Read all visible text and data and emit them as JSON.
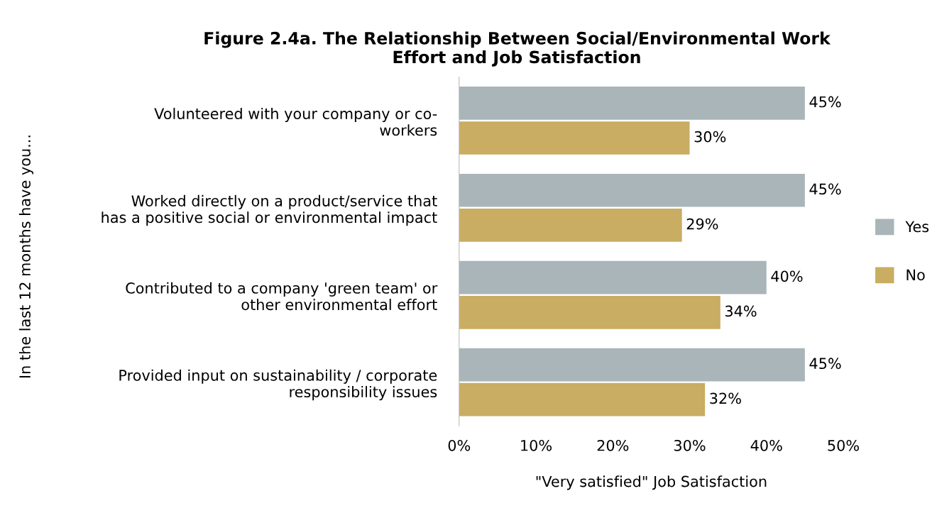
{
  "chart_data": {
    "type": "bar",
    "orientation": "horizontal",
    "title": "Figure 2.4a. The Relationship Between Social/Environmental Work\nEffort and Job Satisfaction",
    "xlabel": "\"Very satisfied\" Job Satisfaction",
    "ylabel": "In the last 12 months have you...",
    "categories": [
      "Volunteered with your company or co-\nworkers",
      "Worked directly on a product/service that\nhas a positive social or environmental impact",
      "Contributed to a company 'green team' or\nother environmental effort",
      "Provided input on sustainability / corporate\nresponsibility issues"
    ],
    "series": [
      {
        "name": "Yes",
        "color": "#a9b5b8",
        "values": [
          45,
          45,
          40,
          45
        ],
        "value_labels": [
          "45%",
          "45%",
          "40%",
          "45%"
        ]
      },
      {
        "name": "No",
        "color": "#c8ad62",
        "values": [
          30,
          29,
          34,
          32
        ],
        "value_labels": [
          "30%",
          "29%",
          "34%",
          "32%"
        ]
      }
    ],
    "xlim": [
      0,
      50
    ],
    "xticks": [
      {
        "value": 0,
        "label": "0%"
      },
      {
        "value": 10,
        "label": "10%"
      },
      {
        "value": 20,
        "label": "20%"
      },
      {
        "value": 30,
        "label": "30%"
      },
      {
        "value": 40,
        "label": "40%"
      },
      {
        "value": 50,
        "label": "50%"
      }
    ],
    "grid": false,
    "legend": "right"
  }
}
